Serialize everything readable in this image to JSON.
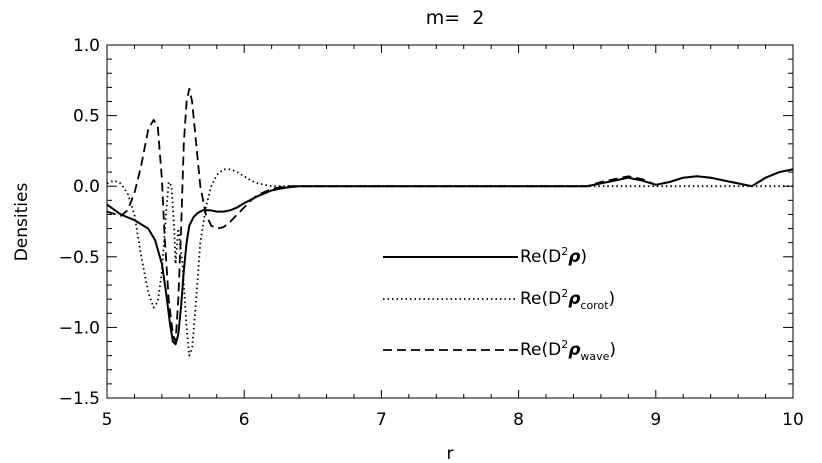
{
  "chart_data": {
    "type": "line",
    "title": "m=  2",
    "xlabel": "r",
    "ylabel": "Densities",
    "xlim": [
      5,
      10
    ],
    "ylim": [
      -1.5,
      1.0
    ],
    "xticks": [
      "5",
      "6",
      "7",
      "8",
      "9",
      "10"
    ],
    "yticks": [
      "1.0",
      "0.5",
      "0.0",
      "−0.5",
      "−1.0",
      "−1.5"
    ],
    "grid": false,
    "legend_position": "center-right",
    "legend": [
      {
        "prefix": "Re(D",
        "sup": "2",
        "symbol": "ρ",
        "sub": "",
        "suffix": ")"
      },
      {
        "prefix": "Re(D",
        "sup": "2",
        "symbol": "ρ",
        "sub": "corot",
        "suffix": ")"
      },
      {
        "prefix": "Re(D",
        "sup": "2",
        "symbol": "ρ",
        "sub": "wave",
        "suffix": ")"
      }
    ],
    "series": [
      {
        "style": "solid",
        "x": [
          5.0,
          5.1,
          5.2,
          5.3,
          5.35,
          5.4,
          5.43,
          5.46,
          5.48,
          5.5,
          5.52,
          5.54,
          5.56,
          5.58,
          5.6,
          5.63,
          5.66,
          5.7,
          5.75,
          5.8,
          5.85,
          5.9,
          5.95,
          6.0,
          6.1,
          6.2,
          6.3,
          6.4,
          6.5,
          6.7,
          7.0,
          7.5,
          8.0,
          8.3,
          8.5,
          8.6,
          8.7,
          8.8,
          8.9,
          9.0,
          9.1,
          9.2,
          9.3,
          9.4,
          9.5,
          9.6,
          9.7,
          9.8,
          9.9,
          10.0
        ],
        "y": [
          -0.13,
          -0.2,
          -0.24,
          -0.3,
          -0.38,
          -0.55,
          -0.75,
          -0.98,
          -1.1,
          -1.12,
          -1.05,
          -0.85,
          -0.6,
          -0.4,
          -0.28,
          -0.22,
          -0.19,
          -0.17,
          -0.17,
          -0.18,
          -0.18,
          -0.17,
          -0.15,
          -0.12,
          -0.07,
          -0.03,
          -0.01,
          0.0,
          0.0,
          0.0,
          0.0,
          0.0,
          0.0,
          0.0,
          0.0,
          0.02,
          0.04,
          0.06,
          0.04,
          0.01,
          0.03,
          0.06,
          0.07,
          0.06,
          0.04,
          0.02,
          0.0,
          0.06,
          0.1,
          0.12
        ]
      },
      {
        "style": "dotted",
        "x": [
          5.0,
          5.05,
          5.1,
          5.15,
          5.2,
          5.25,
          5.3,
          5.34,
          5.37,
          5.4,
          5.43,
          5.45,
          5.47,
          5.49,
          5.5,
          5.52,
          5.55,
          5.58,
          5.6,
          5.62,
          5.65,
          5.68,
          5.72,
          5.76,
          5.8,
          5.85,
          5.9,
          5.95,
          6.0,
          6.05,
          6.1,
          6.2,
          6.3,
          6.5,
          7.0,
          8.0,
          9.0,
          10.0
        ],
        "y": [
          0.02,
          0.04,
          0.02,
          -0.05,
          -0.2,
          -0.5,
          -0.75,
          -0.86,
          -0.82,
          -0.6,
          -0.2,
          0.03,
          0.0,
          -0.3,
          -0.55,
          -0.3,
          -0.55,
          -1.0,
          -1.2,
          -1.15,
          -0.8,
          -0.4,
          -0.15,
          0.0,
          0.08,
          0.12,
          0.12,
          0.1,
          0.07,
          0.04,
          0.02,
          0.0,
          0.0,
          0.0,
          0.0,
          0.0,
          0.0,
          0.0
        ]
      },
      {
        "style": "dashed",
        "x": [
          5.0,
          5.1,
          5.15,
          5.2,
          5.25,
          5.3,
          5.34,
          5.37,
          5.4,
          5.42,
          5.45,
          5.48,
          5.5,
          5.52,
          5.54,
          5.56,
          5.58,
          5.6,
          5.62,
          5.65,
          5.68,
          5.72,
          5.76,
          5.8,
          5.85,
          5.9,
          5.95,
          6.0,
          6.05,
          6.1,
          6.2,
          6.3,
          6.4,
          6.5,
          6.7,
          7.0,
          7.5,
          8.0,
          8.3,
          8.5,
          8.6,
          8.7,
          8.8,
          8.9,
          9.0,
          9.1,
          9.2,
          9.3,
          9.4,
          9.5,
          9.6,
          9.7,
          9.8,
          9.9,
          10.0
        ],
        "y": [
          -0.18,
          -0.21,
          -0.17,
          -0.05,
          0.15,
          0.4,
          0.47,
          0.42,
          0.05,
          -0.35,
          -0.8,
          -1.05,
          -1.1,
          -0.8,
          -0.3,
          0.3,
          0.6,
          0.69,
          0.6,
          0.3,
          0.0,
          -0.2,
          -0.28,
          -0.3,
          -0.29,
          -0.25,
          -0.2,
          -0.15,
          -0.1,
          -0.06,
          -0.02,
          0.0,
          0.0,
          0.0,
          0.0,
          0.0,
          0.0,
          0.0,
          0.0,
          0.0,
          0.03,
          0.05,
          0.07,
          0.05,
          0.01,
          0.03,
          0.06,
          0.07,
          0.06,
          0.04,
          0.02,
          0.0,
          0.06,
          0.1,
          0.12
        ]
      }
    ]
  }
}
